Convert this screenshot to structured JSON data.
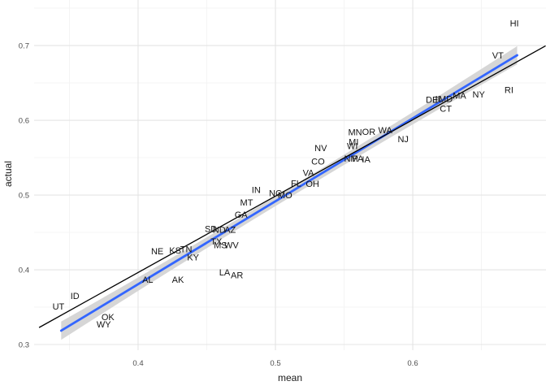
{
  "chart_data": {
    "type": "scatter",
    "title": "",
    "xlabel": "mean",
    "ylabel": "actual",
    "xlim": [
      0.3243,
      0.697
    ],
    "ylim": [
      0.2924,
      0.7609
    ],
    "grid": true,
    "legend": "none",
    "x_ticks": [
      {
        "v": 0.4,
        "label": "0.4"
      },
      {
        "v": 0.5,
        "label": "0.5"
      },
      {
        "v": 0.6,
        "label": "0.6"
      }
    ],
    "x_minor_ticks": [
      0.35,
      0.45,
      0.55,
      0.65
    ],
    "y_ticks": [
      {
        "v": 0.3,
        "label": "0.3"
      },
      {
        "v": 0.4,
        "label": "0.4"
      },
      {
        "v": 0.5,
        "label": "0.5"
      },
      {
        "v": 0.6,
        "label": "0.6"
      },
      {
        "v": 0.7,
        "label": "0.7"
      }
    ],
    "y_minor_ticks": [
      0.35,
      0.45,
      0.55,
      0.65,
      0.75
    ],
    "points": [
      {
        "s": "HI",
        "x": 0.674,
        "y": 0.73
      },
      {
        "s": "VT",
        "x": 0.662,
        "y": 0.687
      },
      {
        "s": "RI",
        "x": 0.67,
        "y": 0.641
      },
      {
        "s": "NY",
        "x": 0.648,
        "y": 0.635
      },
      {
        "s": "MA",
        "x": 0.634,
        "y": 0.633
      },
      {
        "s": "MD",
        "x": 0.624,
        "y": 0.629
      },
      {
        "s": "IL",
        "x": 0.619,
        "y": 0.629
      },
      {
        "s": "DE",
        "x": 0.614,
        "y": 0.628
      },
      {
        "s": "CT",
        "x": 0.624,
        "y": 0.616
      },
      {
        "s": "NJ",
        "x": 0.593,
        "y": 0.575
      },
      {
        "s": "WA",
        "x": 0.58,
        "y": 0.587
      },
      {
        "s": "OR",
        "x": 0.568,
        "y": 0.585
      },
      {
        "s": "MN",
        "x": 0.558,
        "y": 0.584
      },
      {
        "s": "MI",
        "x": 0.557,
        "y": 0.571
      },
      {
        "s": "WI",
        "x": 0.556,
        "y": 0.566
      },
      {
        "s": "IA",
        "x": 0.566,
        "y": 0.548
      },
      {
        "s": "PA",
        "x": 0.56,
        "y": 0.549
      },
      {
        "s": "NM",
        "x": 0.555,
        "y": 0.549
      },
      {
        "s": "NV",
        "x": 0.533,
        "y": 0.563
      },
      {
        "s": "CO",
        "x": 0.531,
        "y": 0.545
      },
      {
        "s": "VA",
        "x": 0.524,
        "y": 0.53
      },
      {
        "s": "OH",
        "x": 0.527,
        "y": 0.515
      },
      {
        "s": "FL",
        "x": 0.515,
        "y": 0.516
      },
      {
        "s": "MO",
        "x": 0.507,
        "y": 0.5
      },
      {
        "s": "NC",
        "x": 0.5,
        "y": 0.503
      },
      {
        "s": "IN",
        "x": 0.486,
        "y": 0.507
      },
      {
        "s": "MT",
        "x": 0.479,
        "y": 0.49
      },
      {
        "s": "GA",
        "x": 0.475,
        "y": 0.474
      },
      {
        "s": "AZ",
        "x": 0.467,
        "y": 0.454
      },
      {
        "s": "ND",
        "x": 0.459,
        "y": 0.454
      },
      {
        "s": "SD",
        "x": 0.453,
        "y": 0.455
      },
      {
        "s": "TX",
        "x": 0.457,
        "y": 0.438
      },
      {
        "s": "MS",
        "x": 0.46,
        "y": 0.433
      },
      {
        "s": "WV",
        "x": 0.468,
        "y": 0.433
      },
      {
        "s": "NE",
        "x": 0.414,
        "y": 0.425
      },
      {
        "s": "KS",
        "x": 0.427,
        "y": 0.426
      },
      {
        "s": "TN",
        "x": 0.435,
        "y": 0.428
      },
      {
        "s": "KY",
        "x": 0.44,
        "y": 0.417
      },
      {
        "s": "LA",
        "x": 0.463,
        "y": 0.397
      },
      {
        "s": "AR",
        "x": 0.472,
        "y": 0.393
      },
      {
        "s": "AL",
        "x": 0.407,
        "y": 0.387
      },
      {
        "s": "AK",
        "x": 0.429,
        "y": 0.387
      },
      {
        "s": "ID",
        "x": 0.354,
        "y": 0.365
      },
      {
        "s": "UT",
        "x": 0.342,
        "y": 0.351
      },
      {
        "s": "OK",
        "x": 0.378,
        "y": 0.337
      },
      {
        "s": "WY",
        "x": 0.375,
        "y": 0.327
      }
    ],
    "identity_line": {
      "x0": 0.3279,
      "y0": 0.3227,
      "x1": 0.6967,
      "y1": 0.6995
    },
    "smooth": {
      "x0": 0.344,
      "x1": 0.676,
      "slope": 1.1099,
      "intercept": -0.0633,
      "band_half_mid": 0.0065,
      "band_half_end": 0.0122
    },
    "colors": {
      "regression_line": "#3366FF",
      "confidence_band": "#d6d6d6",
      "identity_line": "#000000",
      "grid_major": "#e4e4e4",
      "grid_minor": "#f2f2f2",
      "label_text": "#141414",
      "tick_text": "#4d4d4d",
      "background": "#ffffff"
    }
  }
}
